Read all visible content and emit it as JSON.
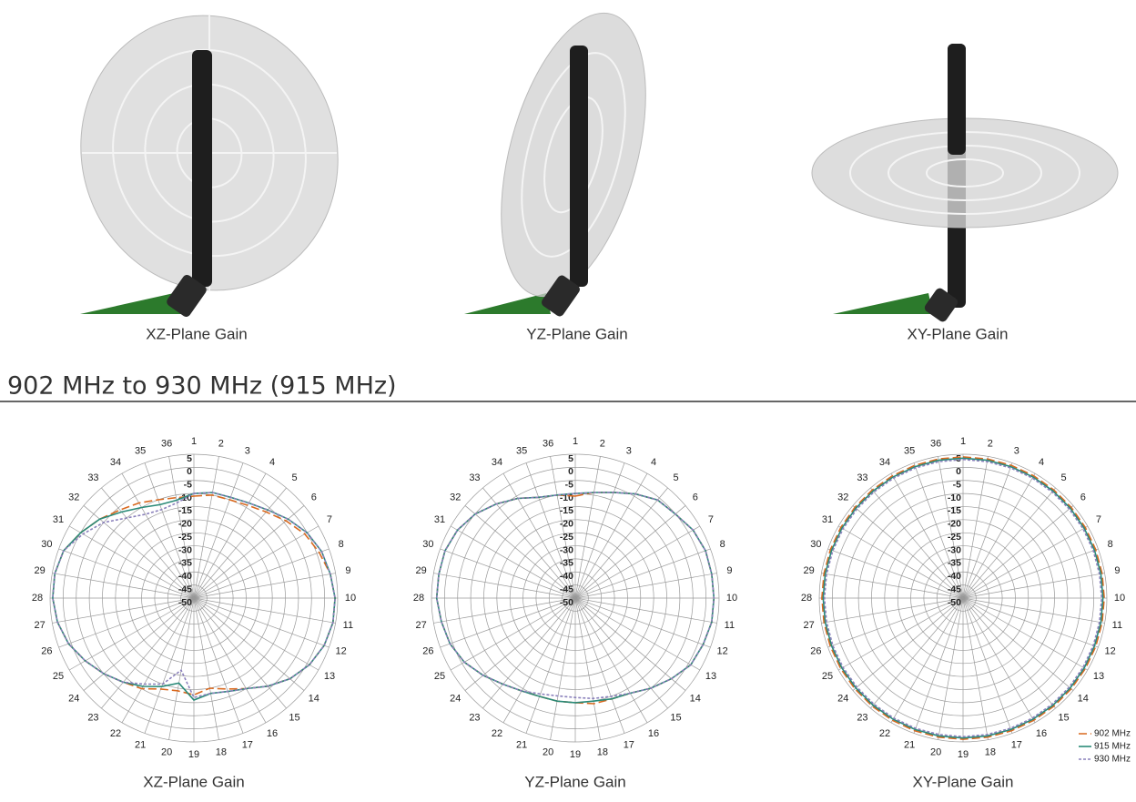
{
  "figure_captions": [
    "XZ-Plane Gain",
    "YZ-Plane Gain",
    "XY-Plane Gain"
  ],
  "section_heading": "902 MHz to 930 MHz (915 MHz)",
  "chart_data": [
    {
      "type": "polar",
      "caption": "XZ-Plane Gain",
      "categories": [
        "1",
        "2",
        "3",
        "4",
        "5",
        "6",
        "7",
        "8",
        "9",
        "10",
        "11",
        "12",
        "13",
        "14",
        "15",
        "16",
        "17",
        "18",
        "19",
        "20",
        "21",
        "22",
        "23",
        "24",
        "25",
        "26",
        "27",
        "28",
        "29",
        "30",
        "31",
        "32",
        "33",
        "34",
        "35",
        "36"
      ],
      "ylim": [
        -50,
        5
      ],
      "yticks": [
        5,
        0,
        -5,
        -10,
        -15,
        -20,
        -25,
        -30,
        -35,
        -40,
        -45,
        -50
      ],
      "grid": true,
      "series": [
        {
          "color": "#d9691f",
          "line_style": "dashed",
          "values": [
            -11,
            -10,
            -10,
            -9,
            -7,
            -4,
            -1,
            1,
            3,
            4,
            4,
            3,
            1,
            -2,
            -6,
            -10,
            -13,
            -15,
            -13,
            -14,
            -13,
            -10,
            -8,
            -5,
            -2,
            1,
            3,
            4,
            4,
            3,
            0,
            -3,
            -6,
            -8,
            -10,
            -11
          ]
        },
        {
          "color": "#2a8a78",
          "line_style": "solid",
          "values": [
            -10,
            -9,
            -9,
            -8,
            -6,
            -3,
            0,
            2,
            3,
            4,
            4,
            3,
            1,
            -2,
            -6,
            -10,
            -12,
            -13,
            -11,
            -17,
            -14,
            -11,
            -8,
            -5,
            -2,
            1,
            3,
            4,
            4,
            3,
            0,
            -3,
            -7,
            -10,
            -12,
            -12
          ]
        },
        {
          "color": "#8a80bb",
          "line_style": "dotted",
          "values": [
            -10,
            -9,
            -9,
            -8,
            -6,
            -3,
            0,
            2,
            3,
            4,
            4,
            3,
            1,
            -2,
            -6,
            -10,
            -12,
            -13,
            -12,
            -22,
            -15,
            -12,
            -8,
            -5,
            -2,
            1,
            3,
            4,
            4,
            3,
            -1,
            -5,
            -10,
            -13,
            -14,
            -13
          ]
        }
      ]
    },
    {
      "type": "polar",
      "caption": "YZ-Plane Gain",
      "categories": [
        "1",
        "2",
        "3",
        "4",
        "5",
        "6",
        "7",
        "8",
        "9",
        "10",
        "11",
        "12",
        "13",
        "14",
        "15",
        "16",
        "17",
        "18",
        "19",
        "20",
        "21",
        "22",
        "23",
        "24",
        "25",
        "26",
        "27",
        "28",
        "29",
        "30",
        "31",
        "32",
        "33",
        "34",
        "35",
        "36"
      ],
      "ylim": [
        -50,
        5
      ],
      "yticks": [
        5,
        0,
        -5,
        -10,
        -15,
        -20,
        -25,
        -30,
        -35,
        -40,
        -45,
        -50
      ],
      "grid": true,
      "series": [
        {
          "color": "#d9691f",
          "line_style": "dashed",
          "values": [
            -11,
            -9,
            -7,
            -4,
            -1,
            0,
            2,
            3,
            3,
            3,
            3,
            2,
            1,
            -2,
            -5,
            -8,
            -9,
            -9,
            -10,
            -10,
            -10,
            -9,
            -7,
            -4,
            -1,
            1,
            2,
            3,
            3,
            3,
            2,
            0,
            -3,
            -6,
            -9,
            -10
          ]
        },
        {
          "color": "#2a8a78",
          "line_style": "solid",
          "values": [
            -10,
            -9,
            -7,
            -4,
            -1,
            0,
            2,
            3,
            3,
            3,
            3,
            2,
            1,
            -2,
            -5,
            -8,
            -9,
            -10,
            -10,
            -10,
            -10,
            -9,
            -7,
            -4,
            -1,
            1,
            2,
            3,
            3,
            3,
            2,
            0,
            -3,
            -6,
            -9,
            -10
          ]
        },
        {
          "color": "#8a80bb",
          "line_style": "dotted",
          "values": [
            -10,
            -9,
            -7,
            -4,
            -1,
            0,
            2,
            3,
            3,
            3,
            3,
            2,
            1,
            -2,
            -5,
            -8,
            -10,
            -11,
            -12,
            -12,
            -11,
            -9,
            -7,
            -4,
            -1,
            1,
            2,
            3,
            3,
            3,
            2,
            0,
            -3,
            -6,
            -9,
            -10
          ]
        }
      ]
    },
    {
      "type": "polar",
      "caption": "XY-Plane Gain",
      "categories": [
        "1",
        "2",
        "3",
        "4",
        "5",
        "6",
        "7",
        "8",
        "9",
        "10",
        "11",
        "12",
        "13",
        "14",
        "15",
        "16",
        "17",
        "18",
        "19",
        "20",
        "21",
        "22",
        "23",
        "24",
        "25",
        "26",
        "27",
        "28",
        "29",
        "30",
        "31",
        "32",
        "33",
        "34",
        "35",
        "36"
      ],
      "ylim": [
        -50,
        5
      ],
      "yticks": [
        5,
        0,
        -5,
        -10,
        -15,
        -20,
        -25,
        -30,
        -35,
        -40,
        -45,
        -50
      ],
      "grid": true,
      "legend": "lower right",
      "series": [
        {
          "name": "902 MHz",
          "color": "#d9691f",
          "line_style": "dashed",
          "values": [
            4,
            4,
            4,
            4,
            4,
            4,
            4,
            4,
            4,
            4,
            4,
            4,
            4,
            4,
            4,
            4,
            4,
            4,
            4,
            4,
            4,
            4,
            4,
            4,
            4,
            4,
            4,
            4,
            4,
            4,
            4,
            4,
            4,
            4,
            4,
            4
          ]
        },
        {
          "name": "915 MHz",
          "color": "#2a8a78",
          "line_style": "solid",
          "values": [
            3.5,
            3.5,
            3.5,
            3.5,
            3.5,
            3.5,
            3.5,
            3.5,
            3.5,
            3.5,
            3.5,
            3.5,
            3.5,
            3.5,
            3.5,
            3.5,
            3.5,
            3.5,
            3.5,
            3.5,
            3.5,
            3.5,
            3.5,
            3.5,
            3.5,
            3.5,
            3.5,
            3.5,
            3.5,
            3.5,
            3.5,
            3.5,
            3.5,
            3.5,
            3.5,
            3.5
          ]
        },
        {
          "name": "930 MHz",
          "color": "#8a80bb",
          "line_style": "dotted",
          "values": [
            3,
            3,
            3,
            3,
            3,
            3,
            3,
            3,
            3,
            3,
            3,
            3,
            3,
            3,
            3,
            3,
            3,
            3,
            3,
            3,
            3,
            3,
            3,
            3,
            3,
            3,
            3,
            3,
            3,
            3,
            3,
            3,
            3,
            3,
            3,
            3
          ]
        }
      ]
    }
  ]
}
